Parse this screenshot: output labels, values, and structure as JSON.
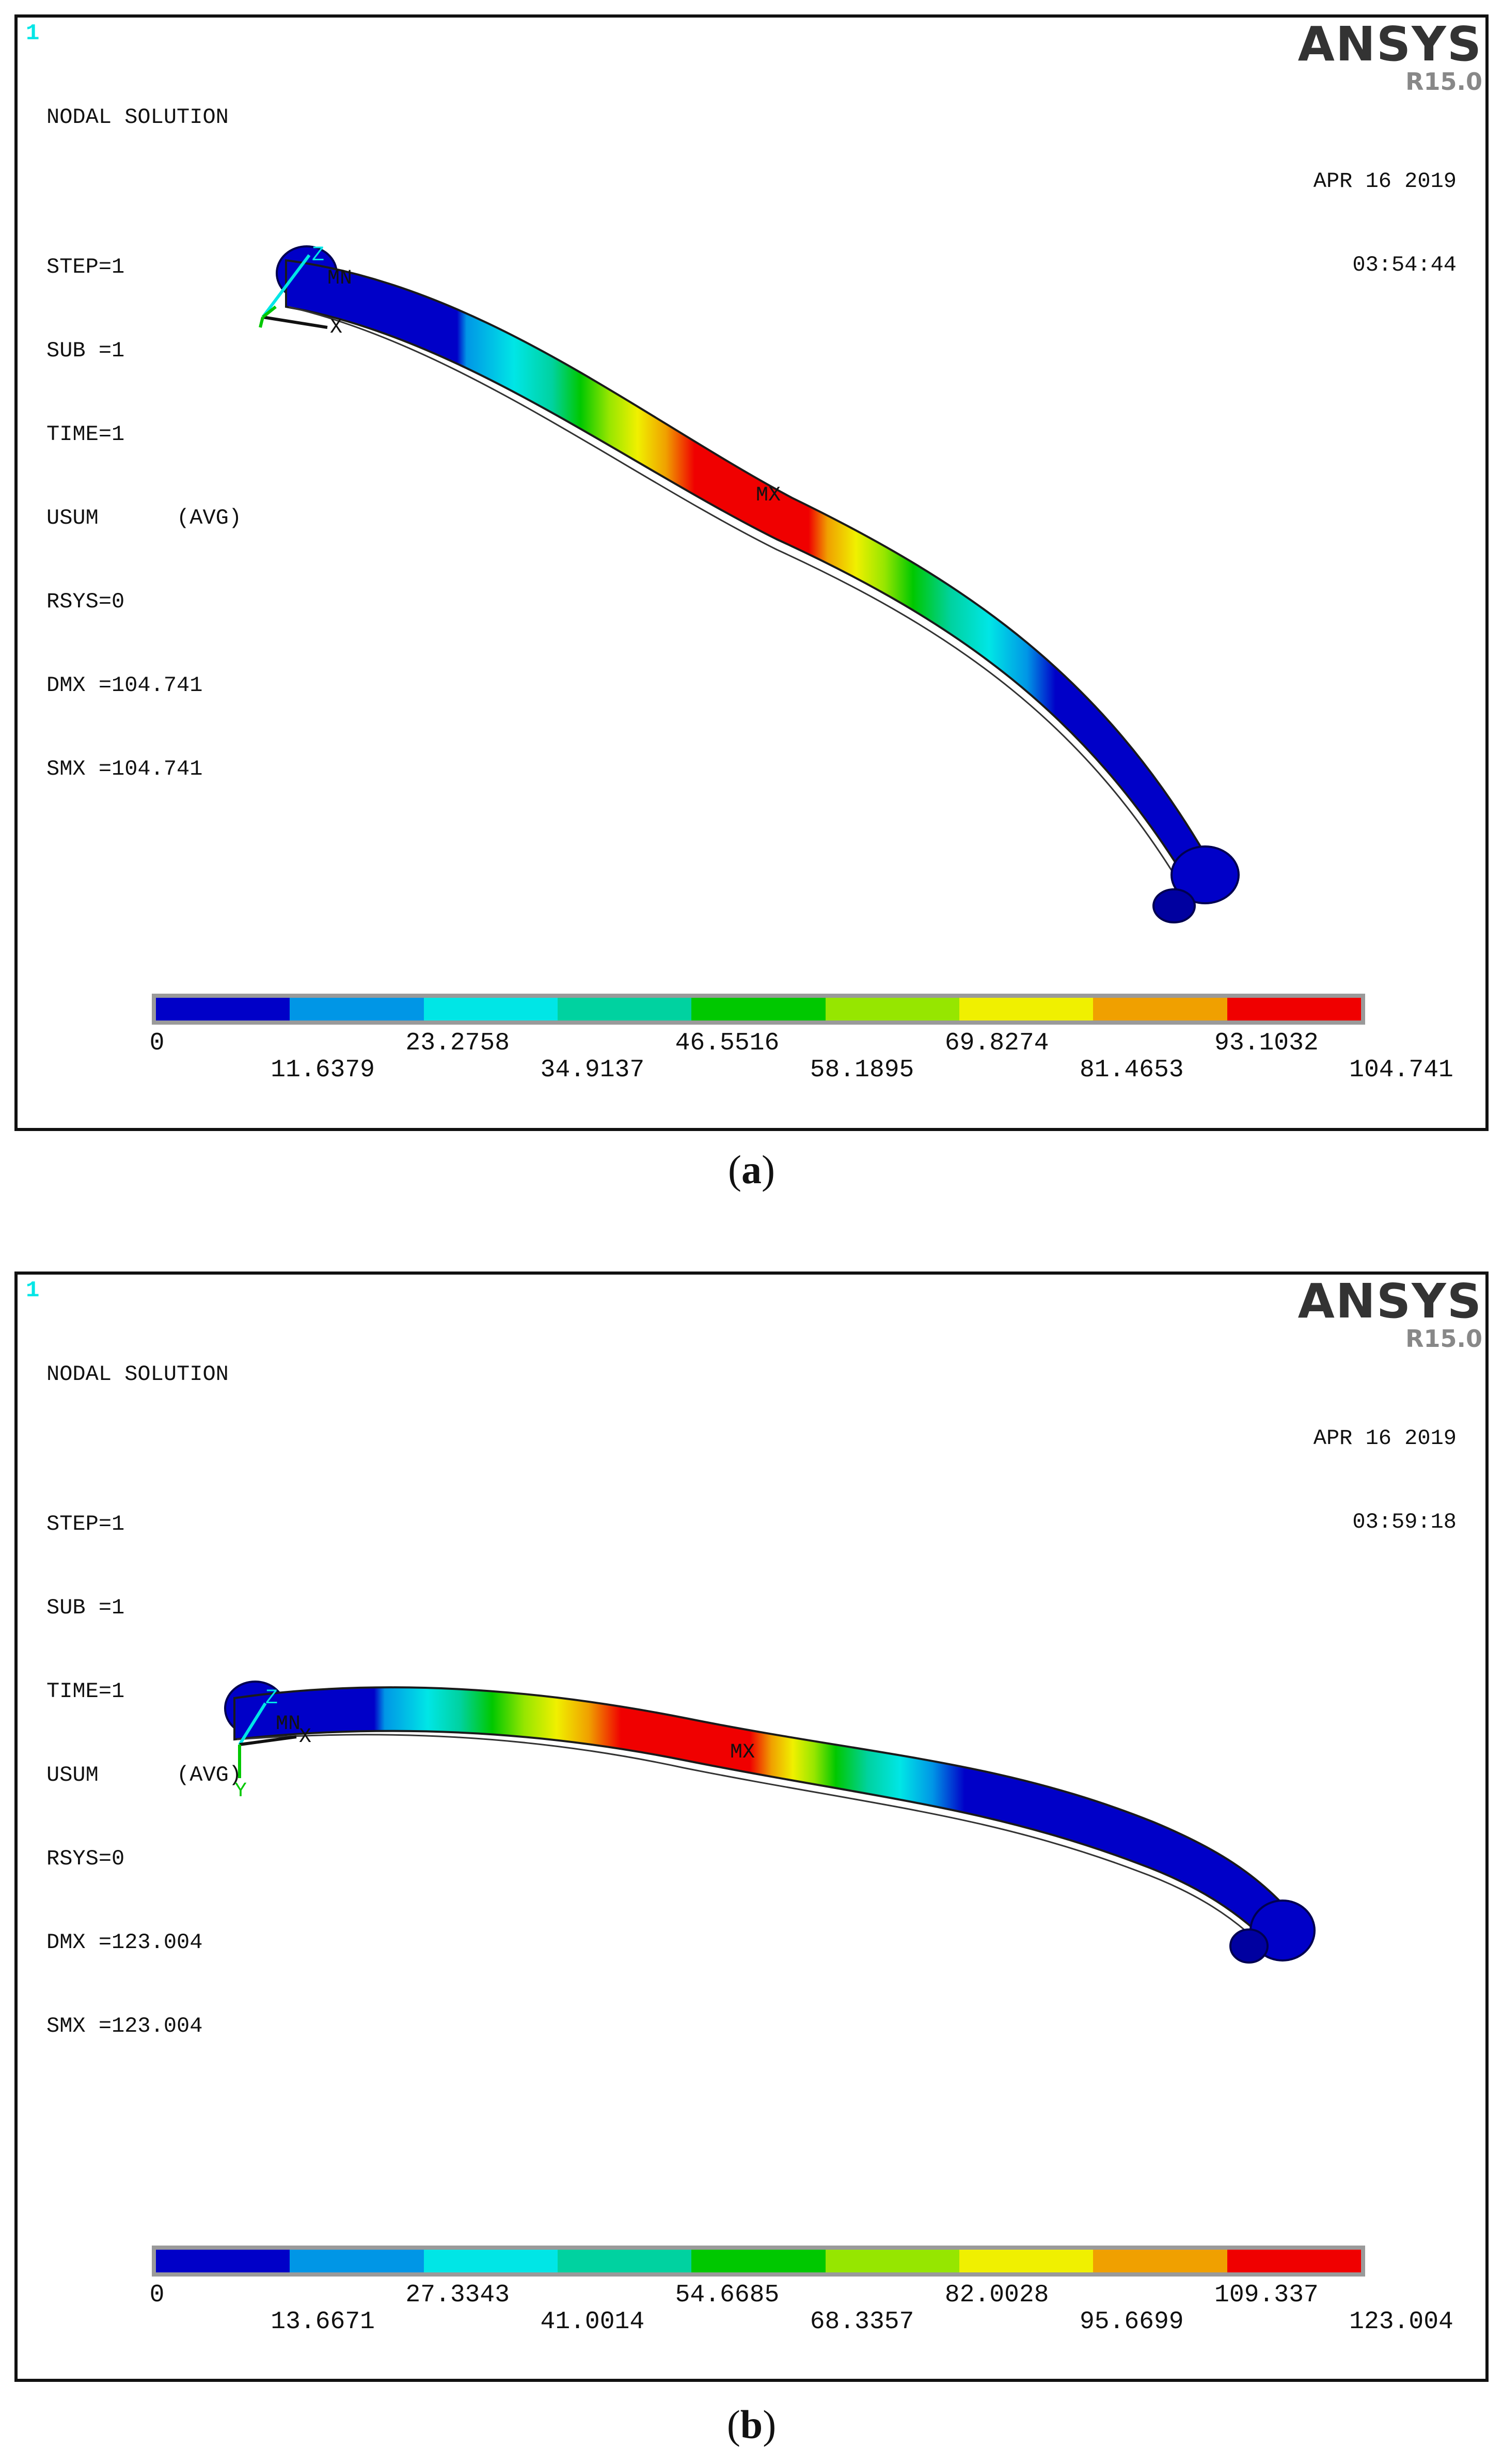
{
  "panels": [
    {
      "id": "a",
      "corner_id": "1",
      "title": "NODAL SOLUTION",
      "info_lines": [
        "STEP=1",
        "SUB =1",
        "TIME=1",
        "USUM      (AVG)",
        "RSYS=0",
        "DMX =104.741",
        "SMX =104.741"
      ],
      "brand": "ANSYS",
      "version": "R15.0",
      "date": "APR 16 2019",
      "time": "03:54:44",
      "mn_label": "MN",
      "mx_label": "MX",
      "axis_labels": {
        "z": "Z",
        "y": "Y",
        "x": "X"
      },
      "legend_top": [
        "0",
        "23.2758",
        "46.5516",
        "69.8274",
        "93.1032"
      ],
      "legend_bottom": [
        "11.6379",
        "34.9137",
        "58.1895",
        "81.4653",
        "104.741"
      ],
      "legend_colors": [
        "#0000c8",
        "#0096e6",
        "#00e6e6",
        "#00d2a0",
        "#00c800",
        "#96e600",
        "#f0f000",
        "#f0a000",
        "#f00000"
      ],
      "caption_letter": "a"
    },
    {
      "id": "b",
      "corner_id": "1",
      "title": "NODAL SOLUTION",
      "info_lines": [
        "STEP=1",
        "SUB =1",
        "TIME=1",
        "USUM      (AVG)",
        "RSYS=0",
        "DMX =123.004",
        "SMX =123.004"
      ],
      "brand": "ANSYS",
      "version": "R15.0",
      "date": "APR 16 2019",
      "time": "03:59:18",
      "mn_label": "MN",
      "mx_label": "MX",
      "axis_labels": {
        "z": "Z",
        "y": "Y",
        "x": "X"
      },
      "legend_top": [
        "0",
        "27.3343",
        "54.6685",
        "82.0028",
        "109.337"
      ],
      "legend_bottom": [
        "13.6671",
        "41.0014",
        "68.3357",
        "95.6699",
        "123.004"
      ],
      "legend_colors": [
        "#0000c8",
        "#0096e6",
        "#00e6e6",
        "#00d2a0",
        "#00c800",
        "#96e600",
        "#f0f000",
        "#f0a000",
        "#f00000"
      ],
      "caption_letter": "b"
    }
  ]
}
